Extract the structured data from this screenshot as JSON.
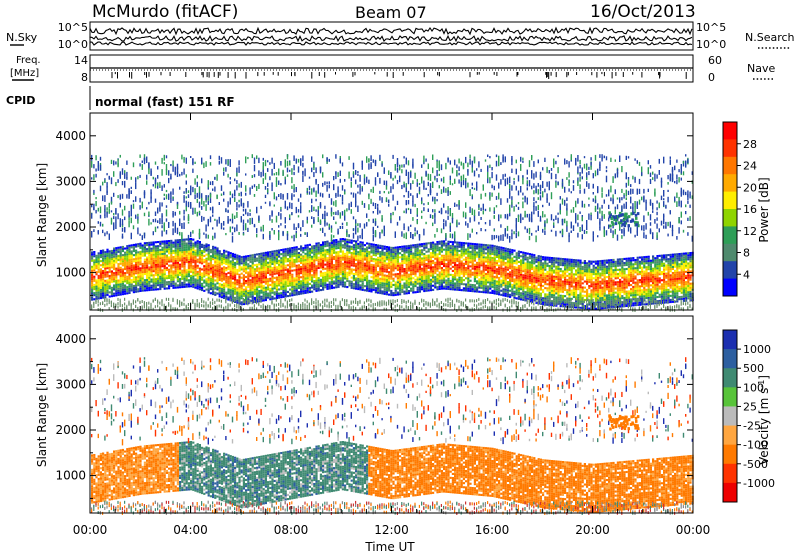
{
  "header": {
    "station": "McMurdo (fitACF)",
    "beam": "Beam 07",
    "date": "16/Oct/2013"
  },
  "strips": {
    "nsky_label": "N.Sky",
    "nsearch_label": "N.Search",
    "freq_label_top": "Freq.",
    "freq_label_bottom": "[MHz]",
    "nave_label": "Nave",
    "cpid_label": "CPID",
    "cpid_text": "normal (fast) 151 RF",
    "noise_ticks_left": [
      "10^5",
      "10^0"
    ],
    "noise_ticks_right": [
      "10^5",
      "10^0"
    ],
    "freq_ticks": [
      "14",
      "8"
    ],
    "nave_ticks": [
      "60",
      "0"
    ]
  },
  "axis": {
    "xlabel": "Time UT",
    "ylabel_top": "Slant Range [km]",
    "ylabel_bottom": "Slant Range [km]"
  },
  "colorbars": {
    "power": {
      "label": "Power [dB]",
      "ticks": [
        "28",
        "24",
        "20",
        "16",
        "12",
        "8",
        "4"
      ],
      "colors": [
        "#ff0000",
        "#ff3300",
        "#ff7700",
        "#ffaa00",
        "#ffee00",
        "#8fd400",
        "#2e9e57",
        "#4f8a6e",
        "#2244aa",
        "#0000ff"
      ]
    },
    "velocity": {
      "label": "Velocity [m s",
      "label_sup": "-1",
      "label_tail": "]",
      "ticks": [
        "1000",
        "500",
        "100",
        "25",
        "-25",
        "-100",
        "-500",
        "-1000"
      ],
      "colors": [
        "#1c2fb0",
        "#2d5fa0",
        "#3f8a72",
        "#58c43a",
        "#bbbbbb",
        "#ffa640",
        "#ff7a00",
        "#ff3300",
        "#ee0000"
      ]
    }
  },
  "chart_data": [
    {
      "type": "heatmap",
      "name": "power",
      "xlabel": "Time UT",
      "ylabel": "Slant Range [km]",
      "x_ticks": [
        "00:00",
        "04:00",
        "08:00",
        "12:00",
        "16:00",
        "20:00",
        "00:00"
      ],
      "y_ticks": [
        1000,
        2000,
        3000,
        4000
      ],
      "xlim_hours": [
        0,
        24
      ],
      "ylim_km": [
        180,
        4500
      ],
      "main_band_range_km": [
        [
          0,
          900
        ],
        [
          2,
          1100
        ],
        [
          4,
          1200
        ],
        [
          6,
          800
        ],
        [
          8,
          1000
        ],
        [
          10,
          1200
        ],
        [
          12,
          1000
        ],
        [
          14,
          1150
        ],
        [
          16,
          1050
        ],
        [
          18,
          800
        ],
        [
          20,
          700
        ],
        [
          22,
          800
        ],
        [
          24,
          900
        ]
      ],
      "colorbar_ticks_db": [
        4,
        8,
        12,
        16,
        20,
        24,
        28
      ]
    },
    {
      "type": "heatmap",
      "name": "velocity",
      "xlabel": "Time UT",
      "ylabel": "Slant Range [km]",
      "x_ticks": [
        "00:00",
        "04:00",
        "08:00",
        "12:00",
        "16:00",
        "20:00",
        "00:00"
      ],
      "y_ticks": [
        1000,
        2000,
        3000,
        4000
      ],
      "xlim_hours": [
        0,
        24
      ],
      "ylim_km": [
        180,
        4500
      ],
      "colorbar_ticks_ms": [
        -1000,
        -500,
        -100,
        -25,
        25,
        100,
        500,
        1000
      ]
    }
  ]
}
